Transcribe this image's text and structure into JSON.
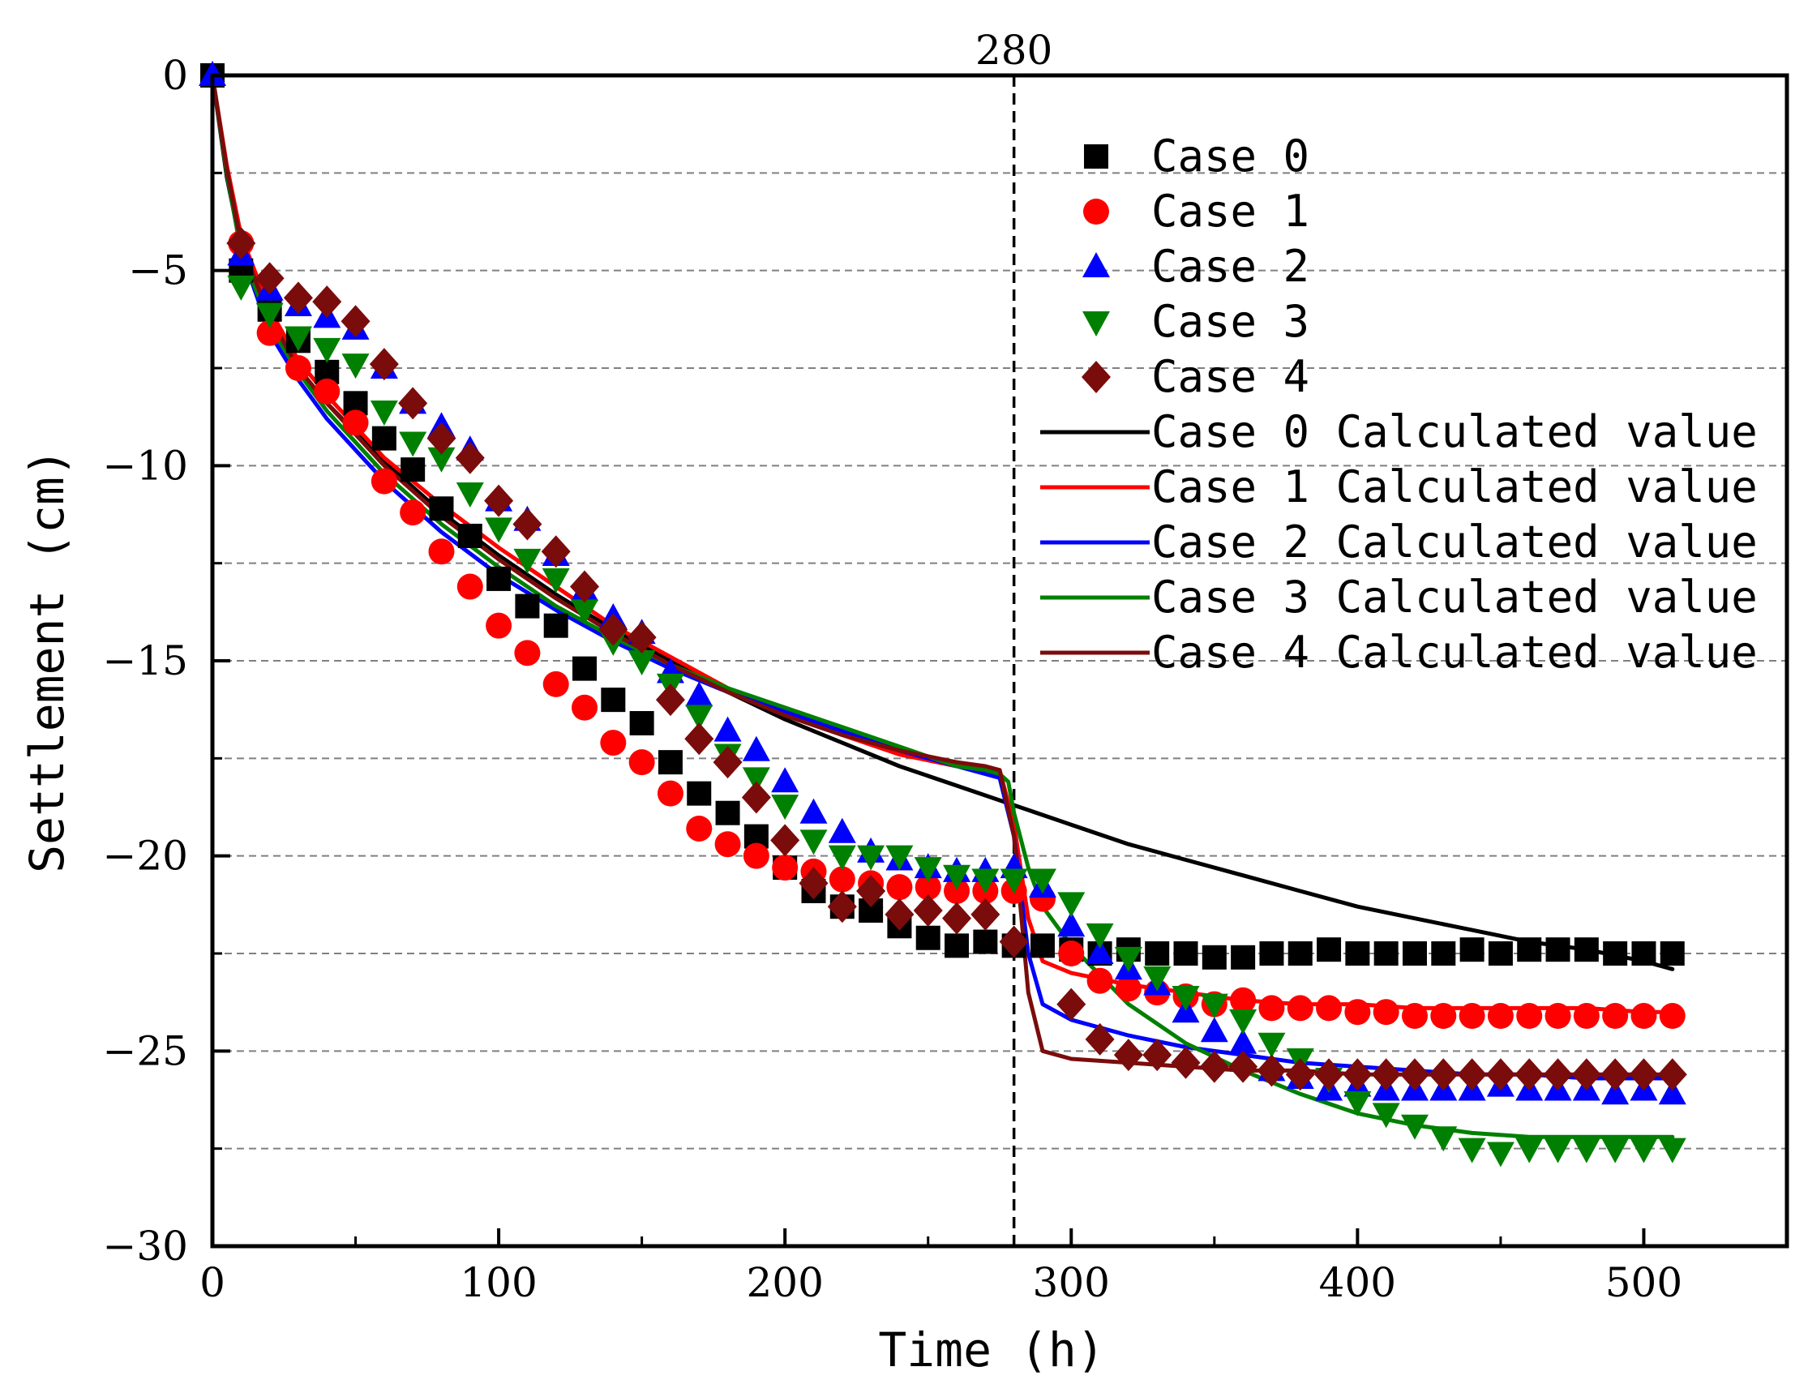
{
  "chart_data": {
    "type": "scatter",
    "title": "",
    "xlabel": "Time (h)",
    "ylabel": "Settlement (cm)",
    "xlim": [
      0,
      550
    ],
    "ylim": [
      -30,
      0
    ],
    "xticks": [
      0,
      100,
      200,
      300,
      400,
      500
    ],
    "yticks": [
      0,
      -5,
      -10,
      -15,
      -20,
      -25,
      -30
    ],
    "xtick_labels": [
      "0",
      "100",
      "200",
      "300",
      "400",
      "500"
    ],
    "ytick_labels": [
      "0",
      "−5",
      "−10",
      "−15",
      "−20",
      "−25",
      "−30"
    ],
    "grid_y_dashed": [
      -2.5,
      -5,
      -7.5,
      -10,
      -12.5,
      -15,
      -17.5,
      -20,
      -22.5,
      -25,
      -27.5
    ],
    "reference_line": {
      "x": 280,
      "label": "280"
    },
    "legend_position": "top-right",
    "colors": {
      "case0": "#000000",
      "case1": "#ff0000",
      "case2": "#0000ff",
      "case3": "#008000",
      "case4": "#7b0c0c"
    },
    "series": [
      {
        "name": "Case 0",
        "kind": "marker",
        "marker": "square",
        "color": "#000000",
        "x": [
          0,
          10,
          20,
          30,
          40,
          50,
          60,
          70,
          80,
          90,
          100,
          110,
          120,
          130,
          140,
          150,
          160,
          170,
          180,
          190,
          200,
          210,
          220,
          230,
          240,
          250,
          260,
          270,
          280,
          290,
          300,
          310,
          320,
          330,
          340,
          350,
          360,
          370,
          380,
          390,
          400,
          410,
          420,
          430,
          440,
          450,
          460,
          470,
          480,
          490,
          500,
          510
        ],
        "y": [
          0,
          -5.0,
          -6.0,
          -6.8,
          -7.6,
          -8.4,
          -9.3,
          -10.1,
          -11.1,
          -11.8,
          -12.9,
          -13.6,
          -14.1,
          -15.2,
          -16.0,
          -16.6,
          -17.6,
          -18.4,
          -18.9,
          -19.5,
          -20.3,
          -20.9,
          -21.3,
          -21.4,
          -21.8,
          -22.1,
          -22.3,
          -22.2,
          -22.3,
          -22.3,
          -22.4,
          -22.5,
          -22.4,
          -22.5,
          -22.5,
          -22.6,
          -22.6,
          -22.5,
          -22.5,
          -22.4,
          -22.5,
          -22.5,
          -22.5,
          -22.5,
          -22.4,
          -22.5,
          -22.4,
          -22.4,
          -22.4,
          -22.5,
          -22.5,
          -22.5
        ]
      },
      {
        "name": "Case 1",
        "kind": "marker",
        "marker": "circle",
        "color": "#ff0000",
        "x": [
          10,
          20,
          30,
          40,
          50,
          60,
          70,
          80,
          90,
          100,
          110,
          120,
          130,
          140,
          150,
          160,
          170,
          180,
          190,
          200,
          210,
          220,
          230,
          240,
          250,
          260,
          270,
          280,
          290,
          300,
          310,
          320,
          330,
          340,
          350,
          360,
          370,
          380,
          390,
          400,
          410,
          420,
          430,
          440,
          450,
          460,
          470,
          480,
          490,
          500,
          510
        ],
        "y": [
          -4.3,
          -6.6,
          -7.5,
          -8.1,
          -8.9,
          -10.4,
          -11.2,
          -12.2,
          -13.1,
          -14.1,
          -14.8,
          -15.6,
          -16.2,
          -17.1,
          -17.6,
          -18.4,
          -19.3,
          -19.7,
          -20.0,
          -20.3,
          -20.4,
          -20.6,
          -20.7,
          -20.8,
          -20.8,
          -20.9,
          -20.9,
          -20.9,
          -21.1,
          -22.5,
          -23.2,
          -23.4,
          -23.5,
          -23.6,
          -23.8,
          -23.7,
          -23.9,
          -23.9,
          -23.9,
          -24.0,
          -24.0,
          -24.1,
          -24.1,
          -24.1,
          -24.1,
          -24.1,
          -24.1,
          -24.1,
          -24.1,
          -24.1,
          -24.1
        ]
      },
      {
        "name": "Case 2",
        "kind": "marker",
        "marker": "triangle-up",
        "color": "#0000ff",
        "x": [
          0,
          10,
          20,
          30,
          40,
          50,
          60,
          70,
          80,
          90,
          100,
          110,
          120,
          130,
          140,
          150,
          160,
          170,
          180,
          190,
          200,
          210,
          220,
          230,
          240,
          250,
          260,
          270,
          280,
          290,
          300,
          310,
          320,
          330,
          340,
          350,
          360,
          370,
          380,
          390,
          400,
          410,
          420,
          430,
          440,
          450,
          460,
          470,
          480,
          490,
          500,
          510
        ],
        "y": [
          0,
          -4.6,
          -5.5,
          -5.9,
          -6.2,
          -6.5,
          -7.5,
          -8.4,
          -9.0,
          -9.6,
          -10.9,
          -11.4,
          -12.3,
          -13.2,
          -13.9,
          -14.3,
          -15.3,
          -15.9,
          -16.8,
          -17.3,
          -18.1,
          -18.9,
          -19.4,
          -19.9,
          -20.1,
          -20.3,
          -20.4,
          -20.4,
          -20.3,
          -20.8,
          -21.8,
          -22.5,
          -22.9,
          -23.3,
          -24.0,
          -24.5,
          -24.8,
          -25.5,
          -25.7,
          -26.0,
          -25.9,
          -26.0,
          -26.0,
          -26.0,
          -26.0,
          -25.9,
          -26.0,
          -26.0,
          -26.0,
          -26.1,
          -26.0,
          -26.1
        ]
      },
      {
        "name": "Case 3",
        "kind": "marker",
        "marker": "triangle-down",
        "color": "#008000",
        "x": [
          10,
          20,
          30,
          40,
          50,
          60,
          70,
          80,
          90,
          100,
          110,
          120,
          130,
          140,
          150,
          160,
          170,
          180,
          190,
          200,
          210,
          220,
          230,
          240,
          250,
          260,
          270,
          280,
          290,
          300,
          310,
          320,
          330,
          340,
          350,
          360,
          370,
          380,
          390,
          400,
          410,
          420,
          430,
          440,
          450,
          460,
          470,
          480,
          490,
          500,
          510
        ],
        "y": [
          -5.4,
          -6.1,
          -6.7,
          -7.0,
          -7.4,
          -8.6,
          -9.4,
          -9.8,
          -10.7,
          -11.6,
          -12.4,
          -12.9,
          -13.7,
          -14.5,
          -15.0,
          -15.6,
          -16.4,
          -17.4,
          -18.0,
          -18.7,
          -19.6,
          -20.0,
          -20.0,
          -20.0,
          -20.3,
          -20.5,
          -20.6,
          -20.6,
          -20.6,
          -21.2,
          -22.0,
          -22.6,
          -23.1,
          -23.6,
          -23.8,
          -24.2,
          -24.8,
          -25.2,
          -25.7,
          -26.3,
          -26.6,
          -26.9,
          -27.2,
          -27.5,
          -27.6,
          -27.5,
          -27.5,
          -27.5,
          -27.5,
          -27.5,
          -27.5
        ]
      },
      {
        "name": "Case 4",
        "kind": "marker",
        "marker": "diamond",
        "color": "#7b0c0c",
        "x": [
          10,
          20,
          30,
          40,
          50,
          60,
          70,
          80,
          90,
          100,
          110,
          120,
          130,
          140,
          150,
          160,
          170,
          180,
          190,
          200,
          210,
          220,
          230,
          240,
          250,
          260,
          270,
          280,
          300,
          310,
          320,
          330,
          340,
          350,
          360,
          370,
          380,
          390,
          400,
          410,
          420,
          430,
          440,
          450,
          460,
          470,
          480,
          490,
          500,
          510
        ],
        "y": [
          -4.3,
          -5.2,
          -5.7,
          -5.8,
          -6.3,
          -7.4,
          -8.4,
          -9.3,
          -9.8,
          -10.9,
          -11.5,
          -12.2,
          -13.1,
          -14.2,
          -14.4,
          -16.0,
          -17.0,
          -17.6,
          -18.5,
          -19.6,
          -20.7,
          -21.3,
          -20.9,
          -21.5,
          -21.4,
          -21.6,
          -21.5,
          -22.2,
          -23.8,
          -24.7,
          -25.1,
          -25.1,
          -25.3,
          -25.4,
          -25.4,
          -25.5,
          -25.6,
          -25.6,
          -25.6,
          -25.6,
          -25.6,
          -25.6,
          -25.6,
          -25.6,
          -25.6,
          -25.6,
          -25.6,
          -25.6,
          -25.6,
          -25.6
        ]
      },
      {
        "name": "Case 0 Calculated value",
        "kind": "line",
        "color": "#000000",
        "x": [
          0,
          5,
          10,
          20,
          30,
          40,
          60,
          80,
          100,
          120,
          140,
          160,
          180,
          200,
          220,
          240,
          260,
          280,
          300,
          320,
          340,
          360,
          380,
          400,
          420,
          440,
          460,
          480,
          500,
          510
        ],
        "y": [
          0,
          -2.6,
          -4.4,
          -6.3,
          -7.5,
          -8.4,
          -9.9,
          -11.2,
          -12.3,
          -13.3,
          -14.2,
          -15.0,
          -15.8,
          -16.5,
          -17.1,
          -17.7,
          -18.2,
          -18.7,
          -19.2,
          -19.7,
          -20.1,
          -20.5,
          -20.9,
          -21.3,
          -21.6,
          -21.9,
          -22.2,
          -22.4,
          -22.7,
          -22.9
        ]
      },
      {
        "name": "Case 1 Calculated value",
        "kind": "line",
        "color": "#ff0000",
        "x": [
          0,
          5,
          10,
          20,
          30,
          40,
          60,
          80,
          100,
          120,
          140,
          160,
          180,
          200,
          220,
          240,
          260,
          270,
          275,
          280,
          285,
          290,
          300,
          320,
          340,
          360,
          380,
          400,
          420,
          440,
          460,
          480,
          500,
          510
        ],
        "y": [
          0,
          -2.3,
          -4.1,
          -6.0,
          -7.3,
          -8.2,
          -9.8,
          -11.0,
          -12.1,
          -13.1,
          -14.1,
          -14.9,
          -15.7,
          -16.3,
          -16.9,
          -17.4,
          -17.7,
          -17.8,
          -17.8,
          -19.2,
          -21.6,
          -22.7,
          -23.0,
          -23.3,
          -23.5,
          -23.7,
          -23.8,
          -23.8,
          -23.9,
          -23.9,
          -23.9,
          -23.9,
          -24.0,
          -24.0
        ]
      },
      {
        "name": "Case 2 Calculated value",
        "kind": "line",
        "color": "#0000ff",
        "x": [
          0,
          5,
          10,
          20,
          30,
          40,
          60,
          80,
          100,
          120,
          140,
          160,
          180,
          200,
          220,
          240,
          260,
          270,
          275,
          280,
          285,
          290,
          300,
          320,
          340,
          360,
          380,
          400,
          420,
          440,
          460,
          480,
          500,
          510
        ],
        "y": [
          0,
          -2.5,
          -4.5,
          -6.6,
          -7.8,
          -8.8,
          -10.4,
          -11.7,
          -12.8,
          -13.7,
          -14.5,
          -15.2,
          -15.8,
          -16.3,
          -16.8,
          -17.3,
          -17.7,
          -17.9,
          -18.0,
          -19.5,
          -22.5,
          -23.8,
          -24.2,
          -24.6,
          -24.9,
          -25.1,
          -25.3,
          -25.4,
          -25.5,
          -25.6,
          -25.6,
          -25.7,
          -25.7,
          -25.7
        ]
      },
      {
        "name": "Case 3 Calculated value",
        "kind": "line",
        "color": "#008000",
        "x": [
          0,
          5,
          10,
          20,
          30,
          40,
          60,
          80,
          100,
          120,
          140,
          160,
          180,
          200,
          220,
          240,
          260,
          270,
          275,
          278,
          280,
          285,
          290,
          300,
          320,
          340,
          360,
          380,
          400,
          420,
          440,
          460,
          480,
          500,
          510
        ],
        "y": [
          0,
          -2.5,
          -4.5,
          -6.4,
          -7.6,
          -8.6,
          -10.2,
          -11.5,
          -12.6,
          -13.6,
          -14.4,
          -15.1,
          -15.7,
          -16.2,
          -16.7,
          -17.2,
          -17.7,
          -17.8,
          -17.9,
          -18.1,
          -18.9,
          -20.3,
          -21.3,
          -22.3,
          -23.8,
          -24.8,
          -25.5,
          -26.1,
          -26.6,
          -26.9,
          -27.1,
          -27.2,
          -27.2,
          -27.2,
          -27.2
        ]
      },
      {
        "name": "Case 4 Calculated value",
        "kind": "line",
        "color": "#7b0c0c",
        "x": [
          0,
          5,
          10,
          20,
          30,
          40,
          60,
          80,
          100,
          120,
          140,
          160,
          180,
          200,
          220,
          240,
          260,
          270,
          275,
          280,
          285,
          290,
          300,
          320,
          340,
          360,
          380,
          400,
          420,
          440,
          460,
          480,
          500,
          510
        ],
        "y": [
          0,
          -2.4,
          -4.3,
          -6.2,
          -7.5,
          -8.4,
          -10.0,
          -11.3,
          -12.4,
          -13.4,
          -14.3,
          -15.1,
          -15.8,
          -16.4,
          -16.9,
          -17.3,
          -17.6,
          -17.7,
          -17.8,
          -19.5,
          -23.5,
          -25.0,
          -25.2,
          -25.3,
          -25.4,
          -25.5,
          -25.5,
          -25.6,
          -25.6,
          -25.6,
          -25.6,
          -25.6,
          -25.6,
          -25.6
        ]
      }
    ]
  }
}
